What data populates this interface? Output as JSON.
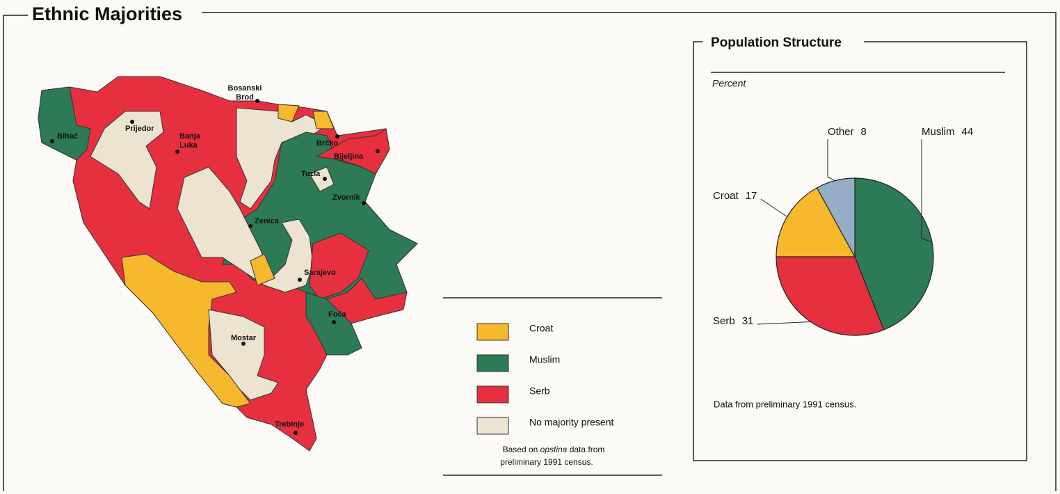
{
  "header": {
    "title": "Ethnic Majorities"
  },
  "map": {
    "cities": [
      [
        "Bihać"
      ],
      [
        "Prijedor"
      ],
      [
        "Banja",
        "Luka"
      ],
      [
        "Bosanski",
        "Brod"
      ],
      [
        "Brčko"
      ],
      [
        "Bijeljina"
      ],
      [
        "Tuzla"
      ],
      [
        "Zvornik"
      ],
      [
        "Zenica"
      ],
      [
        "Sarajevo"
      ],
      [
        "Mostar"
      ],
      [
        "Foča"
      ],
      [
        "Trebinje"
      ]
    ]
  },
  "legend": {
    "items": [
      "Croat",
      "Muslim",
      "Serb",
      "No majority present"
    ],
    "colors": [
      "#f6b82c",
      "#2d7a56",
      "#e6303f",
      "#ede3d1"
    ],
    "note": [
      "Based on",
      "opstina",
      "data from",
      "preliminary 1991 census."
    ]
  },
  "chart_data": {
    "type": "pie",
    "title": "Population Structure",
    "subtitle": "Percent",
    "categories": [
      "Muslim",
      "Serb",
      "Croat",
      "Other"
    ],
    "values": [
      44,
      31,
      17,
      8
    ],
    "colors": [
      "#2d7a56",
      "#e6303f",
      "#f6b82c",
      "#95aec6"
    ],
    "note": "Data from preliminary 1991 census."
  }
}
